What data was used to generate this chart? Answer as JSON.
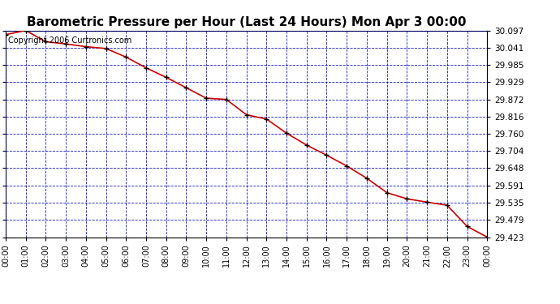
{
  "title": "Barometric Pressure per Hour (Last 24 Hours) Mon Apr 3 00:00",
  "copyright": "Copyright 2006 Curtronics.com",
  "x_labels": [
    "00:00",
    "01:00",
    "02:00",
    "03:00",
    "04:00",
    "05:00",
    "06:00",
    "07:00",
    "08:00",
    "09:00",
    "10:00",
    "11:00",
    "12:00",
    "13:00",
    "14:00",
    "15:00",
    "16:00",
    "17:00",
    "18:00",
    "19:00",
    "20:00",
    "21:00",
    "22:00",
    "23:00",
    "00:00"
  ],
  "hours": [
    0,
    1,
    2,
    3,
    4,
    5,
    6,
    7,
    8,
    9,
    10,
    11,
    12,
    13,
    14,
    15,
    16,
    17,
    18,
    19,
    20,
    21,
    22,
    23,
    24
  ],
  "pressure": [
    30.083,
    30.097,
    30.06,
    30.053,
    30.044,
    30.038,
    30.01,
    29.975,
    29.944,
    29.91,
    29.876,
    29.872,
    29.822,
    29.808,
    29.762,
    29.723,
    29.69,
    29.655,
    29.615,
    29.568,
    29.548,
    29.537,
    29.527,
    29.458,
    29.423
  ],
  "ylim_min": 29.423,
  "ylim_max": 30.097,
  "yticks": [
    30.097,
    30.041,
    29.985,
    29.929,
    29.872,
    29.816,
    29.76,
    29.704,
    29.648,
    29.591,
    29.535,
    29.479,
    29.423
  ],
  "line_color": "#cc0000",
  "marker_color": "#000000",
  "bg_color": "#ffffff",
  "plot_bg_color": "#ffffff",
  "grid_color": "#0000bb",
  "title_fontsize": 11,
  "copyright_fontsize": 7
}
